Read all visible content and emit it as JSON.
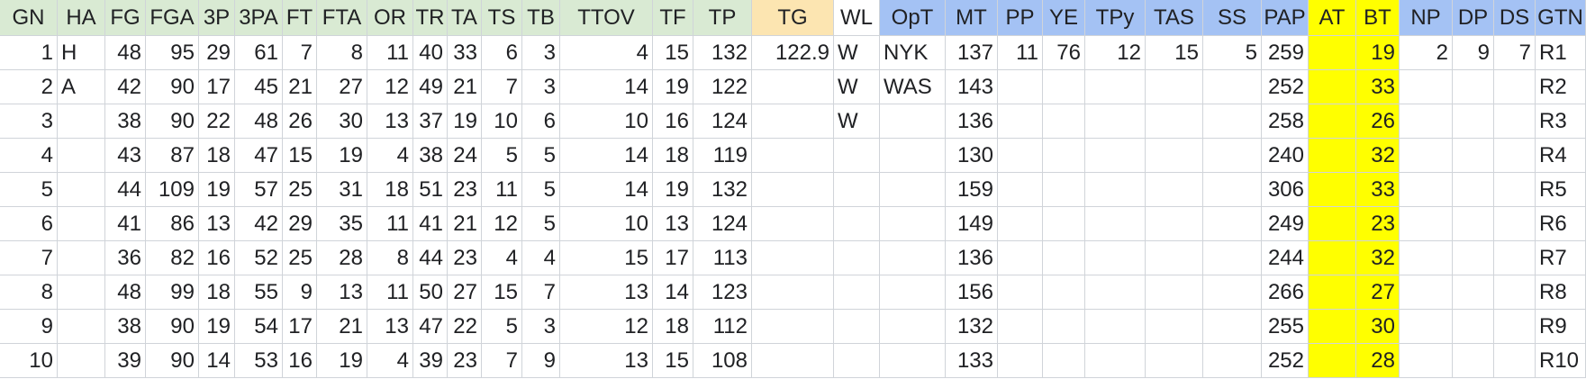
{
  "colors": {
    "green_header": "#d9ead3",
    "orange_header": "#fce5b1",
    "blue_header": "#a4c2f4",
    "white_header": "#ffffff",
    "highlight_yellow": "#ffff00",
    "grid_line": "#d0d4d9"
  },
  "columns": [
    {
      "label": "GN",
      "align": "num",
      "header_color": "green_header"
    },
    {
      "label": "HA",
      "align": "txt",
      "header_color": "green_header"
    },
    {
      "label": "FG",
      "align": "num",
      "header_color": "green_header"
    },
    {
      "label": "FGA",
      "align": "num",
      "header_color": "green_header"
    },
    {
      "label": "3P",
      "align": "num",
      "header_color": "green_header"
    },
    {
      "label": "3PA",
      "align": "num",
      "header_color": "green_header"
    },
    {
      "label": "FT",
      "align": "num",
      "header_color": "green_header"
    },
    {
      "label": "FTA",
      "align": "num",
      "header_color": "green_header"
    },
    {
      "label": "OR",
      "align": "num",
      "header_color": "green_header"
    },
    {
      "label": "TR",
      "align": "num",
      "header_color": "green_header"
    },
    {
      "label": "TA",
      "align": "num",
      "header_color": "green_header"
    },
    {
      "label": "TS",
      "align": "num",
      "header_color": "green_header"
    },
    {
      "label": "TB",
      "align": "num",
      "header_color": "green_header"
    },
    {
      "label": "TTOV",
      "align": "num",
      "header_color": "green_header"
    },
    {
      "label": "TF",
      "align": "num",
      "header_color": "green_header"
    },
    {
      "label": "TP",
      "align": "num",
      "header_color": "green_header"
    },
    {
      "label": "TG",
      "align": "num",
      "header_color": "orange_header"
    },
    {
      "label": "WL",
      "align": "txt",
      "header_color": "white_header"
    },
    {
      "label": "OpT",
      "align": "txt",
      "header_color": "blue_header"
    },
    {
      "label": "MT",
      "align": "num",
      "header_color": "blue_header"
    },
    {
      "label": "PP",
      "align": "num",
      "header_color": "blue_header"
    },
    {
      "label": "YE",
      "align": "num",
      "header_color": "blue_header"
    },
    {
      "label": "TPy",
      "align": "num",
      "header_color": "blue_header"
    },
    {
      "label": "TAS",
      "align": "num",
      "header_color": "blue_header"
    },
    {
      "label": "SS",
      "align": "num",
      "header_color": "blue_header"
    },
    {
      "label": "PAP",
      "align": "num",
      "header_color": "blue_header"
    },
    {
      "label": "AT",
      "align": "num",
      "header_color": "highlight_yellow",
      "column_fill": "highlight_yellow"
    },
    {
      "label": "BT",
      "align": "num",
      "header_color": "highlight_yellow",
      "column_fill": "highlight_yellow"
    },
    {
      "label": "NP",
      "align": "num",
      "header_color": "blue_header"
    },
    {
      "label": "DP",
      "align": "num",
      "header_color": "blue_header"
    },
    {
      "label": "DS",
      "align": "num",
      "header_color": "blue_header"
    },
    {
      "label": "GTN",
      "align": "txt",
      "header_color": "blue_header"
    }
  ],
  "rows": [
    [
      "1",
      "H",
      "48",
      "95",
      "29",
      "61",
      "7",
      "8",
      "11",
      "40",
      "33",
      "6",
      "3",
      "4",
      "15",
      "132",
      "122.9",
      "W",
      "NYK",
      "137",
      "11",
      "76",
      "12",
      "15",
      "5",
      "259",
      "",
      "19",
      "2",
      "9",
      "7",
      "R1"
    ],
    [
      "2",
      "A",
      "42",
      "90",
      "17",
      "45",
      "21",
      "27",
      "12",
      "49",
      "21",
      "7",
      "3",
      "14",
      "19",
      "122",
      "",
      "W",
      "WAS",
      "143",
      "",
      "",
      "",
      "",
      "",
      "252",
      "",
      "33",
      "",
      "",
      "",
      "R2"
    ],
    [
      "3",
      "",
      "38",
      "90",
      "22",
      "48",
      "26",
      "30",
      "13",
      "37",
      "19",
      "10",
      "6",
      "10",
      "16",
      "124",
      "",
      "W",
      "",
      "136",
      "",
      "",
      "",
      "",
      "",
      "258",
      "",
      "26",
      "",
      "",
      "",
      "R3"
    ],
    [
      "4",
      "",
      "43",
      "87",
      "18",
      "47",
      "15",
      "19",
      "4",
      "38",
      "24",
      "5",
      "5",
      "14",
      "18",
      "119",
      "",
      "",
      "",
      "130",
      "",
      "",
      "",
      "",
      "",
      "240",
      "",
      "32",
      "",
      "",
      "",
      "R4"
    ],
    [
      "5",
      "",
      "44",
      "109",
      "19",
      "57",
      "25",
      "31",
      "18",
      "51",
      "23",
      "11",
      "5",
      "14",
      "19",
      "132",
      "",
      "",
      "",
      "159",
      "",
      "",
      "",
      "",
      "",
      "306",
      "",
      "33",
      "",
      "",
      "",
      "R5"
    ],
    [
      "6",
      "",
      "41",
      "86",
      "13",
      "42",
      "29",
      "35",
      "11",
      "41",
      "21",
      "12",
      "5",
      "10",
      "13",
      "124",
      "",
      "",
      "",
      "149",
      "",
      "",
      "",
      "",
      "",
      "249",
      "",
      "23",
      "",
      "",
      "",
      "R6"
    ],
    [
      "7",
      "",
      "36",
      "82",
      "16",
      "52",
      "25",
      "28",
      "8",
      "44",
      "23",
      "4",
      "4",
      "15",
      "17",
      "113",
      "",
      "",
      "",
      "136",
      "",
      "",
      "",
      "",
      "",
      "244",
      "",
      "32",
      "",
      "",
      "",
      "R7"
    ],
    [
      "8",
      "",
      "48",
      "99",
      "18",
      "55",
      "9",
      "13",
      "11",
      "50",
      "27",
      "15",
      "7",
      "13",
      "14",
      "123",
      "",
      "",
      "",
      "156",
      "",
      "",
      "",
      "",
      "",
      "266",
      "",
      "27",
      "",
      "",
      "",
      "R8"
    ],
    [
      "9",
      "",
      "38",
      "90",
      "19",
      "54",
      "17",
      "21",
      "13",
      "47",
      "22",
      "5",
      "3",
      "12",
      "18",
      "112",
      "",
      "",
      "",
      "132",
      "",
      "",
      "",
      "",
      "",
      "255",
      "",
      "30",
      "",
      "",
      "",
      "R9"
    ],
    [
      "10",
      "",
      "39",
      "90",
      "14",
      "53",
      "16",
      "19",
      "4",
      "39",
      "23",
      "7",
      "9",
      "13",
      "15",
      "108",
      "",
      "",
      "",
      "133",
      "",
      "",
      "",
      "",
      "",
      "252",
      "",
      "28",
      "",
      "",
      "",
      "R10"
    ]
  ]
}
